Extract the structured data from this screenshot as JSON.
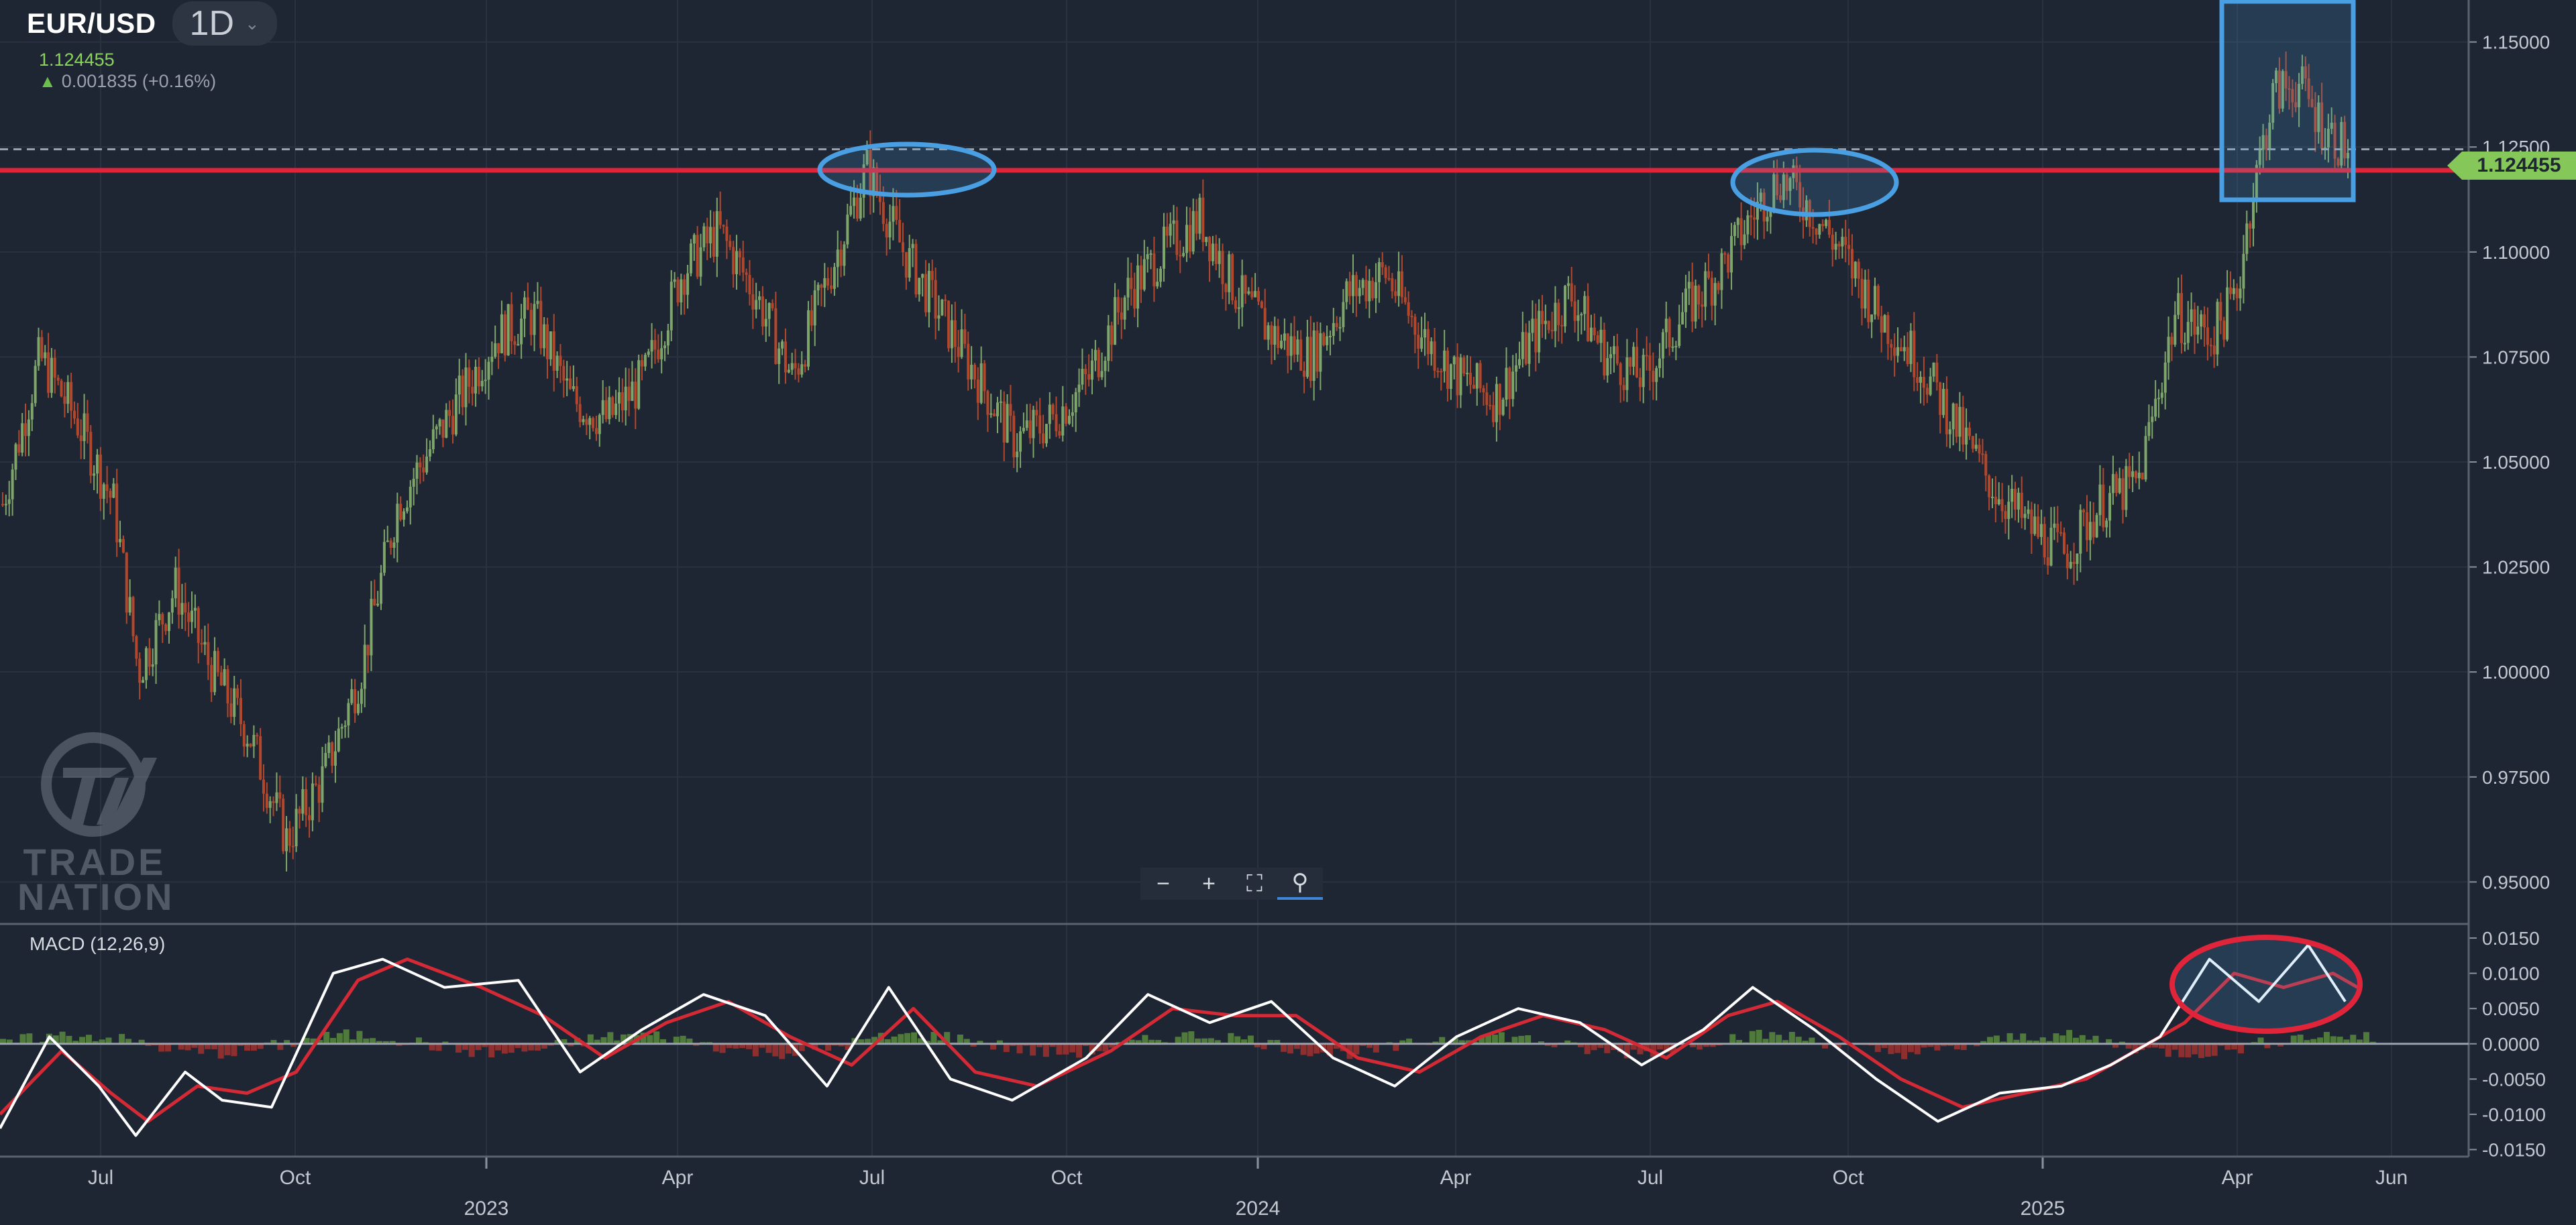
{
  "header": {
    "symbol": "EUR/USD",
    "timeframe": "1D",
    "last_price": "1.124455",
    "change_text": "0.001835 (+0.16%)"
  },
  "toolbar": {
    "zoom_out_icon": "minus-icon",
    "zoom_in_icon": "plus-icon",
    "fit_icon": "fit-screen-icon",
    "magnify_icon": "magnify-icon"
  },
  "brand": {
    "line1": "TRADE",
    "line2": "NATION"
  },
  "price_tag": "1.124455",
  "macd_label": "MACD (12,26,9)",
  "colors": {
    "background": "#1f2633",
    "bull": "#7ea66a",
    "bear": "#b3472c",
    "resistance": "#e0253a",
    "highlight": "#4a9ee2",
    "macd_line": "#ffffff",
    "signal_line": "#d42a36"
  },
  "chart_data": [
    {
      "type": "candlestick",
      "title": "EUR/USD 1D",
      "ylim": [
        0.94,
        1.16
      ],
      "y_ticks": [
        "1.15000",
        "1.12500",
        "1.10000",
        "1.07500",
        "1.05000",
        "1.02500",
        "1.00000",
        "0.97500",
        "0.95000"
      ],
      "x_months": [
        "Jul",
        "Oct",
        "2023",
        "Apr",
        "Jul",
        "Oct",
        "2024",
        "Apr",
        "Jul",
        "Oct",
        "2025",
        "Apr",
        "Jun"
      ],
      "x_years": [
        "2023",
        "2024",
        "2025"
      ],
      "resistance_level": 1.122,
      "current_price_line": 1.124455,
      "close_series": [
        {
          "x": 0.0,
          "y": 1.04
        },
        {
          "x": 0.015,
          "y": 1.075
        },
        {
          "x": 0.03,
          "y": 1.06
        },
        {
          "x": 0.045,
          "y": 1.04
        },
        {
          "x": 0.055,
          "y": 1.0
        },
        {
          "x": 0.07,
          "y": 1.02
        },
        {
          "x": 0.085,
          "y": 1.0
        },
        {
          "x": 0.1,
          "y": 0.985
        },
        {
          "x": 0.115,
          "y": 0.96
        },
        {
          "x": 0.13,
          "y": 0.975
        },
        {
          "x": 0.145,
          "y": 1.0
        },
        {
          "x": 0.16,
          "y": 1.04
        },
        {
          "x": 0.18,
          "y": 1.06
        },
        {
          "x": 0.2,
          "y": 1.08
        },
        {
          "x": 0.215,
          "y": 1.085
        },
        {
          "x": 0.23,
          "y": 1.065
        },
        {
          "x": 0.245,
          "y": 1.06
        },
        {
          "x": 0.26,
          "y": 1.07
        },
        {
          "x": 0.275,
          "y": 1.095
        },
        {
          "x": 0.29,
          "y": 1.105
        },
        {
          "x": 0.305,
          "y": 1.09
        },
        {
          "x": 0.32,
          "y": 1.07
        },
        {
          "x": 0.335,
          "y": 1.095
        },
        {
          "x": 0.35,
          "y": 1.12
        },
        {
          "x": 0.365,
          "y": 1.1
        },
        {
          "x": 0.38,
          "y": 1.085
        },
        {
          "x": 0.395,
          "y": 1.07
        },
        {
          "x": 0.41,
          "y": 1.055
        },
        {
          "x": 0.425,
          "y": 1.06
        },
        {
          "x": 0.44,
          "y": 1.07
        },
        {
          "x": 0.455,
          "y": 1.09
        },
        {
          "x": 0.47,
          "y": 1.1
        },
        {
          "x": 0.485,
          "y": 1.108
        },
        {
          "x": 0.5,
          "y": 1.09
        },
        {
          "x": 0.515,
          "y": 1.08
        },
        {
          "x": 0.53,
          "y": 1.075
        },
        {
          "x": 0.545,
          "y": 1.09
        },
        {
          "x": 0.56,
          "y": 1.095
        },
        {
          "x": 0.575,
          "y": 1.08
        },
        {
          "x": 0.59,
          "y": 1.07
        },
        {
          "x": 0.605,
          "y": 1.065
        },
        {
          "x": 0.62,
          "y": 1.08
        },
        {
          "x": 0.635,
          "y": 1.09
        },
        {
          "x": 0.65,
          "y": 1.075
        },
        {
          "x": 0.665,
          "y": 1.07
        },
        {
          "x": 0.68,
          "y": 1.085
        },
        {
          "x": 0.695,
          "y": 1.095
        },
        {
          "x": 0.71,
          "y": 1.11
        },
        {
          "x": 0.72,
          "y": 1.118
        },
        {
          "x": 0.73,
          "y": 1.112
        },
        {
          "x": 0.745,
          "y": 1.1
        },
        {
          "x": 0.76,
          "y": 1.085
        },
        {
          "x": 0.775,
          "y": 1.075
        },
        {
          "x": 0.79,
          "y": 1.06
        },
        {
          "x": 0.805,
          "y": 1.045
        },
        {
          "x": 0.82,
          "y": 1.035
        },
        {
          "x": 0.835,
          "y": 1.028
        },
        {
          "x": 0.85,
          "y": 1.04
        },
        {
          "x": 0.865,
          "y": 1.045
        },
        {
          "x": 0.88,
          "y": 1.085
        },
        {
          "x": 0.895,
          "y": 1.08
        },
        {
          "x": 0.905,
          "y": 1.09
        },
        {
          "x": 0.91,
          "y": 1.11
        },
        {
          "x": 0.92,
          "y": 1.138
        },
        {
          "x": 0.93,
          "y": 1.14
        },
        {
          "x": 0.94,
          "y": 1.13
        },
        {
          "x": 0.95,
          "y": 1.124
        }
      ]
    },
    {
      "type": "line",
      "title": "MACD (12,26,9)",
      "ylim": [
        -0.016,
        0.017
      ],
      "y_ticks": [
        "0.0150",
        "0.0100",
        "0.0050",
        "0.0000",
        "-0.0050",
        "-0.0100",
        "-0.0150"
      ],
      "series": [
        {
          "values": [
            {
              "x": 0.0,
              "y": -0.012
            },
            {
              "x": 0.02,
              "y": 0.001
            },
            {
              "x": 0.04,
              "y": -0.006
            },
            {
              "x": 0.055,
              "y": -0.013
            },
            {
              "x": 0.075,
              "y": -0.004
            },
            {
              "x": 0.09,
              "y": -0.008
            },
            {
              "x": 0.11,
              "y": -0.009
            },
            {
              "x": 0.135,
              "y": 0.01
            },
            {
              "x": 0.155,
              "y": 0.012
            },
            {
              "x": 0.18,
              "y": 0.008
            },
            {
              "x": 0.21,
              "y": 0.009
            },
            {
              "x": 0.235,
              "y": -0.004
            },
            {
              "x": 0.26,
              "y": 0.002
            },
            {
              "x": 0.285,
              "y": 0.007
            },
            {
              "x": 0.31,
              "y": 0.004
            },
            {
              "x": 0.335,
              "y": -0.006
            },
            {
              "x": 0.36,
              "y": 0.008
            },
            {
              "x": 0.385,
              "y": -0.005
            },
            {
              "x": 0.41,
              "y": -0.008
            },
            {
              "x": 0.44,
              "y": -0.002
            },
            {
              "x": 0.465,
              "y": 0.007
            },
            {
              "x": 0.49,
              "y": 0.003
            },
            {
              "x": 0.515,
              "y": 0.006
            },
            {
              "x": 0.54,
              "y": -0.002
            },
            {
              "x": 0.565,
              "y": -0.006
            },
            {
              "x": 0.59,
              "y": 0.001
            },
            {
              "x": 0.615,
              "y": 0.005
            },
            {
              "x": 0.64,
              "y": 0.003
            },
            {
              "x": 0.665,
              "y": -0.003
            },
            {
              "x": 0.69,
              "y": 0.002
            },
            {
              "x": 0.71,
              "y": 0.008
            },
            {
              "x": 0.735,
              "y": 0.002
            },
            {
              "x": 0.76,
              "y": -0.005
            },
            {
              "x": 0.785,
              "y": -0.011
            },
            {
              "x": 0.81,
              "y": -0.007
            },
            {
              "x": 0.835,
              "y": -0.006
            },
            {
              "x": 0.855,
              "y": -0.003
            },
            {
              "x": 0.875,
              "y": 0.001
            },
            {
              "x": 0.895,
              "y": 0.012
            },
            {
              "x": 0.915,
              "y": 0.006
            },
            {
              "x": 0.935,
              "y": 0.014
            },
            {
              "x": 0.95,
              "y": 0.006
            }
          ]
        },
        {
          "values": [
            {
              "x": 0.0,
              "y": -0.01
            },
            {
              "x": 0.025,
              "y": -0.001
            },
            {
              "x": 0.045,
              "y": -0.007
            },
            {
              "x": 0.06,
              "y": -0.011
            },
            {
              "x": 0.08,
              "y": -0.006
            },
            {
              "x": 0.1,
              "y": -0.007
            },
            {
              "x": 0.12,
              "y": -0.004
            },
            {
              "x": 0.145,
              "y": 0.009
            },
            {
              "x": 0.165,
              "y": 0.012
            },
            {
              "x": 0.195,
              "y": 0.008
            },
            {
              "x": 0.22,
              "y": 0.004
            },
            {
              "x": 0.245,
              "y": -0.002
            },
            {
              "x": 0.27,
              "y": 0.003
            },
            {
              "x": 0.295,
              "y": 0.006
            },
            {
              "x": 0.32,
              "y": 0.001
            },
            {
              "x": 0.345,
              "y": -0.003
            },
            {
              "x": 0.37,
              "y": 0.005
            },
            {
              "x": 0.395,
              "y": -0.004
            },
            {
              "x": 0.42,
              "y": -0.006
            },
            {
              "x": 0.45,
              "y": -0.001
            },
            {
              "x": 0.475,
              "y": 0.005
            },
            {
              "x": 0.5,
              "y": 0.004
            },
            {
              "x": 0.525,
              "y": 0.004
            },
            {
              "x": 0.55,
              "y": -0.002
            },
            {
              "x": 0.575,
              "y": -0.004
            },
            {
              "x": 0.6,
              "y": 0.001
            },
            {
              "x": 0.625,
              "y": 0.004
            },
            {
              "x": 0.65,
              "y": 0.002
            },
            {
              "x": 0.675,
              "y": -0.002
            },
            {
              "x": 0.7,
              "y": 0.004
            },
            {
              "x": 0.72,
              "y": 0.006
            },
            {
              "x": 0.745,
              "y": 0.001
            },
            {
              "x": 0.77,
              "y": -0.005
            },
            {
              "x": 0.795,
              "y": -0.009
            },
            {
              "x": 0.82,
              "y": -0.007
            },
            {
              "x": 0.845,
              "y": -0.005
            },
            {
              "x": 0.865,
              "y": -0.001
            },
            {
              "x": 0.885,
              "y": 0.003
            },
            {
              "x": 0.905,
              "y": 0.01
            },
            {
              "x": 0.925,
              "y": 0.008
            },
            {
              "x": 0.945,
              "y": 0.01
            },
            {
              "x": 0.955,
              "y": 0.008
            }
          ]
        }
      ]
    }
  ]
}
